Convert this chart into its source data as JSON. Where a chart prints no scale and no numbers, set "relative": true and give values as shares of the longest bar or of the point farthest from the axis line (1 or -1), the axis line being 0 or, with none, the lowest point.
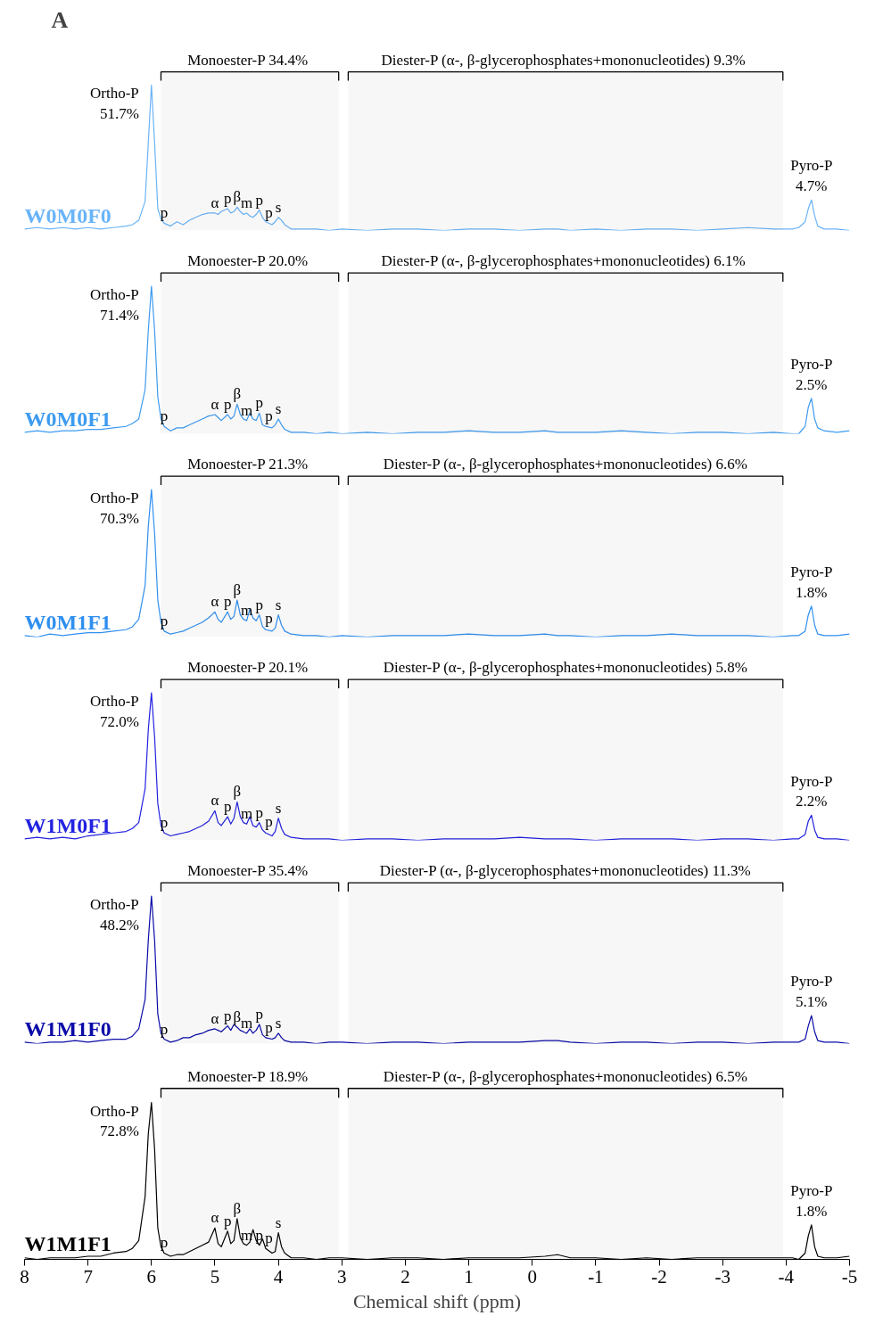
{
  "chart_data": [
    {
      "type": "line",
      "title": "A",
      "relative": true,
      "xlim": [
        8,
        -5
      ],
      "tick_labels": false,
      "x": [
        8.0,
        7.8,
        7.6,
        7.4,
        7.2,
        7.0,
        6.8,
        6.6,
        6.4,
        6.3,
        6.2,
        6.1,
        6.05,
        6.0,
        5.95,
        5.9,
        5.85,
        5.8,
        5.7,
        5.6,
        5.5,
        5.4,
        5.3,
        5.2,
        5.1,
        5.0,
        4.95,
        4.9,
        4.8,
        4.75,
        4.7,
        4.65,
        4.6,
        4.55,
        4.5,
        4.45,
        4.4,
        4.35,
        4.3,
        4.25,
        4.2,
        4.1,
        4.05,
        4.0,
        3.95,
        3.9,
        3.8,
        3.6,
        3.4,
        3.2,
        3.0,
        2.6,
        2.2,
        1.8,
        1.4,
        1.0,
        0.6,
        0.2,
        -0.2,
        -0.4,
        -0.6,
        -1.0,
        -1.4,
        -1.8,
        -2.2,
        -2.6,
        -3.0,
        -3.4,
        -3.8,
        -4.1,
        -4.2,
        -4.3,
        -4.35,
        -4.4,
        -4.45,
        -4.5,
        -4.6,
        -4.8,
        -5.0
      ],
      "series": [
        {
          "name": "W0M0F0",
          "color": "#6ab4f8",
          "values": [
            0.01,
            0.02,
            0.01,
            0.02,
            0.01,
            0.02,
            0.01,
            0.02,
            0.03,
            0.04,
            0.07,
            0.2,
            0.6,
            1,
            0.6,
            0.15,
            0.08,
            0.05,
            0.03,
            0.06,
            0.04,
            0.07,
            0.09,
            0.11,
            0.12,
            0.12,
            0.11,
            0.13,
            0.15,
            0.12,
            0.13,
            0.16,
            0.13,
            0.11,
            0.12,
            0.1,
            0.09,
            0.11,
            0.14,
            0.09,
            0.06,
            0.04,
            0.06,
            0.09,
            0.07,
            0.04,
            0.01,
            0.01,
            0.01,
            0.0,
            0.01,
            0.0,
            0.01,
            0.01,
            0.0,
            0.01,
            0.01,
            0.0,
            0.01,
            0.01,
            0.0,
            0.01,
            0.0,
            0.01,
            0.01,
            0.0,
            0.01,
            0.02,
            0.01,
            0.01,
            0.02,
            0.06,
            0.15,
            0.21,
            0.1,
            0.03,
            0.01,
            0.01,
            0.0
          ]
        }
      ],
      "bands": [
        {
          "axis": "x",
          "from": 5.85,
          "to": 3.05,
          "label": "Monoester-P  34.4%"
        },
        {
          "axis": "x",
          "from": 2.9,
          "to": -3.95,
          "label": "Diester-P  (α-, β-glycerophosphates+mononucleotides) 9.3%"
        }
      ],
      "annotations": [
        {
          "text": "Ortho-P\n51.7%",
          "x": 6.0,
          "y": 1
        },
        {
          "text": "Pyro-P\n4.7%",
          "x": -4.4,
          "y": 0.21
        },
        {
          "text": "p",
          "x": 5.8,
          "y": 0.05
        },
        {
          "text": "α",
          "x": 5.0,
          "y": 0.12
        },
        {
          "text": "p",
          "x": 4.8,
          "y": 0.15
        },
        {
          "text": "β",
          "x": 4.65,
          "y": 0.16
        },
        {
          "text": "m",
          "x": 4.5,
          "y": 0.12
        },
        {
          "text": "p",
          "x": 4.3,
          "y": 0.14
        },
        {
          "text": "p",
          "x": 4.15,
          "y": 0.05
        },
        {
          "text": "s",
          "x": 4.0,
          "y": 0.09
        }
      ]
    },
    {
      "type": "line",
      "relative": true,
      "xlim": [
        8,
        -5
      ],
      "tick_labels": false,
      "x": [
        8.0,
        7.8,
        7.6,
        7.4,
        7.2,
        7.0,
        6.8,
        6.6,
        6.4,
        6.3,
        6.2,
        6.1,
        6.05,
        6.0,
        5.95,
        5.9,
        5.85,
        5.8,
        5.7,
        5.6,
        5.5,
        5.4,
        5.3,
        5.2,
        5.1,
        5.0,
        4.95,
        4.9,
        4.8,
        4.75,
        4.7,
        4.65,
        4.6,
        4.55,
        4.5,
        4.45,
        4.4,
        4.35,
        4.3,
        4.25,
        4.2,
        4.1,
        4.05,
        4.0,
        3.95,
        3.9,
        3.8,
        3.6,
        3.4,
        3.2,
        3.0,
        2.6,
        2.2,
        1.8,
        1.4,
        1.0,
        0.6,
        0.2,
        -0.2,
        -0.4,
        -0.6,
        -1.0,
        -1.4,
        -1.8,
        -2.2,
        -2.6,
        -3.0,
        -3.4,
        -3.8,
        -4.1,
        -4.2,
        -4.3,
        -4.35,
        -4.4,
        -4.45,
        -4.5,
        -4.6,
        -4.8,
        -5.0
      ],
      "series": [
        {
          "name": "W0M0F1",
          "color": "#3d9bf0",
          "values": [
            0.01,
            0.02,
            0.01,
            0.02,
            0.02,
            0.03,
            0.03,
            0.04,
            0.05,
            0.07,
            0.1,
            0.3,
            0.7,
            1,
            0.7,
            0.25,
            0.1,
            0.05,
            0.02,
            0.04,
            0.04,
            0.06,
            0.08,
            0.1,
            0.12,
            0.13,
            0.11,
            0.09,
            0.13,
            0.1,
            0.12,
            0.2,
            0.13,
            0.1,
            0.09,
            0.14,
            0.1,
            0.09,
            0.14,
            0.06,
            0.05,
            0.04,
            0.06,
            0.1,
            0.06,
            0.03,
            0.01,
            0.01,
            0.0,
            0.01,
            0.0,
            0.01,
            0.0,
            0.01,
            0.01,
            0.02,
            0.01,
            0.01,
            0.02,
            0.01,
            0.01,
            0.01,
            0.02,
            0.01,
            0.0,
            0.01,
            0.01,
            0.0,
            0.01,
            0.0,
            0.0,
            0.05,
            0.18,
            0.24,
            0.1,
            0.04,
            0.02,
            0.01,
            0.02
          ]
        }
      ],
      "bands": [
        {
          "axis": "x",
          "from": 5.85,
          "to": 3.05,
          "label": "Monoester-P  20.0%"
        },
        {
          "axis": "x",
          "from": 2.9,
          "to": -3.95,
          "label": "Diester-P  (α-, β-glycerophosphates+mononucleotides) 6.1%"
        }
      ],
      "annotations": [
        {
          "text": "Ortho-P\n71.4%",
          "x": 6.0,
          "y": 1
        },
        {
          "text": "Pyro-P\n2.5%",
          "x": -4.4,
          "y": 0.24
        },
        {
          "text": "p",
          "x": 5.8,
          "y": 0.05
        },
        {
          "text": "α",
          "x": 5.0,
          "y": 0.13
        },
        {
          "text": "p",
          "x": 4.8,
          "y": 0.13
        },
        {
          "text": "β",
          "x": 4.65,
          "y": 0.2
        },
        {
          "text": "m",
          "x": 4.5,
          "y": 0.09
        },
        {
          "text": "p",
          "x": 4.3,
          "y": 0.14
        },
        {
          "text": "p",
          "x": 4.15,
          "y": 0.05
        },
        {
          "text": "s",
          "x": 4.0,
          "y": 0.1
        }
      ]
    },
    {
      "type": "line",
      "relative": true,
      "xlim": [
        8,
        -5
      ],
      "tick_labels": false,
      "x": [
        8.0,
        7.8,
        7.6,
        7.4,
        7.2,
        7.0,
        6.8,
        6.6,
        6.4,
        6.3,
        6.2,
        6.1,
        6.05,
        6.0,
        5.95,
        5.9,
        5.85,
        5.8,
        5.7,
        5.6,
        5.5,
        5.4,
        5.3,
        5.2,
        5.1,
        5.0,
        4.95,
        4.9,
        4.8,
        4.75,
        4.7,
        4.65,
        4.6,
        4.55,
        4.5,
        4.45,
        4.4,
        4.35,
        4.3,
        4.25,
        4.2,
        4.1,
        4.05,
        4.0,
        3.95,
        3.9,
        3.8,
        3.6,
        3.4,
        3.2,
        3.0,
        2.6,
        2.2,
        1.8,
        1.4,
        1.0,
        0.6,
        0.2,
        -0.2,
        -0.4,
        -0.6,
        -1.0,
        -1.4,
        -1.8,
        -2.2,
        -2.6,
        -3.0,
        -3.4,
        -3.8,
        -4.1,
        -4.2,
        -4.3,
        -4.35,
        -4.4,
        -4.45,
        -4.5,
        -4.6,
        -4.8,
        -5.0
      ],
      "series": [
        {
          "name": "W0M1F1",
          "color": "#2f8ff0",
          "values": [
            0.01,
            0.0,
            0.02,
            0.01,
            0.02,
            0.03,
            0.03,
            0.04,
            0.05,
            0.07,
            0.12,
            0.35,
            0.75,
            1,
            0.7,
            0.25,
            0.1,
            0.04,
            0.02,
            0.03,
            0.04,
            0.06,
            0.08,
            0.1,
            0.13,
            0.17,
            0.12,
            0.1,
            0.17,
            0.12,
            0.14,
            0.25,
            0.15,
            0.12,
            0.11,
            0.19,
            0.13,
            0.11,
            0.15,
            0.07,
            0.05,
            0.04,
            0.06,
            0.15,
            0.08,
            0.04,
            0.02,
            0.01,
            0.01,
            0.0,
            0.01,
            0.0,
            0.01,
            0.01,
            0.01,
            0.02,
            0.01,
            0.01,
            0.02,
            0.01,
            0.01,
            0.0,
            0.01,
            0.01,
            0.02,
            0.01,
            0.01,
            0.01,
            0.0,
            0.01,
            0.01,
            0.04,
            0.15,
            0.21,
            0.08,
            0.02,
            0.01,
            0.01,
            0.02
          ]
        }
      ],
      "bands": [
        {
          "axis": "x",
          "from": 5.85,
          "to": 3.05,
          "label": "Monoester-P  21.3%"
        },
        {
          "axis": "x",
          "from": 2.9,
          "to": -3.95,
          "label": "Diester-P (α-, β-glycerophosphates+mononucleotides) 6.6%"
        }
      ],
      "annotations": [
        {
          "text": "Ortho-P\n70.3%",
          "x": 6.0,
          "y": 1
        },
        {
          "text": "Pyro-P\n1.8%",
          "x": -4.4,
          "y": 0.21
        },
        {
          "text": "p",
          "x": 5.8,
          "y": 0.04
        },
        {
          "text": "α",
          "x": 5.0,
          "y": 0.17
        },
        {
          "text": "p",
          "x": 4.8,
          "y": 0.17
        },
        {
          "text": "β",
          "x": 4.65,
          "y": 0.25
        },
        {
          "text": "m",
          "x": 4.5,
          "y": 0.11
        },
        {
          "text": "p",
          "x": 4.3,
          "y": 0.15
        },
        {
          "text": "p",
          "x": 4.15,
          "y": 0.06
        },
        {
          "text": "s",
          "x": 4.0,
          "y": 0.15
        }
      ]
    },
    {
      "type": "line",
      "relative": true,
      "xlim": [
        8,
        -5
      ],
      "tick_labels": false,
      "x": [
        8.0,
        7.8,
        7.6,
        7.4,
        7.2,
        7.0,
        6.8,
        6.6,
        6.4,
        6.3,
        6.2,
        6.1,
        6.05,
        6.0,
        5.95,
        5.9,
        5.85,
        5.8,
        5.7,
        5.6,
        5.5,
        5.4,
        5.3,
        5.2,
        5.1,
        5.0,
        4.95,
        4.9,
        4.8,
        4.75,
        4.7,
        4.65,
        4.6,
        4.55,
        4.5,
        4.45,
        4.4,
        4.35,
        4.3,
        4.25,
        4.2,
        4.1,
        4.05,
        4.0,
        3.95,
        3.9,
        3.8,
        3.6,
        3.4,
        3.2,
        3.0,
        2.6,
        2.2,
        1.8,
        1.4,
        1.0,
        0.6,
        0.2,
        -0.2,
        -0.4,
        -0.6,
        -1.0,
        -1.4,
        -1.8,
        -2.2,
        -2.6,
        -3.0,
        -3.4,
        -3.8,
        -4.1,
        -4.2,
        -4.3,
        -4.35,
        -4.4,
        -4.45,
        -4.5,
        -4.6,
        -4.8,
        -5.0
      ],
      "series": [
        {
          "name": "W1M0F1",
          "color": "#2222e0",
          "values": [
            0.01,
            0.02,
            0.01,
            0.02,
            0.01,
            0.03,
            0.04,
            0.05,
            0.06,
            0.08,
            0.12,
            0.35,
            0.75,
            1,
            0.7,
            0.25,
            0.1,
            0.05,
            0.03,
            0.04,
            0.05,
            0.06,
            0.08,
            0.1,
            0.13,
            0.2,
            0.12,
            0.1,
            0.16,
            0.11,
            0.15,
            0.26,
            0.16,
            0.12,
            0.11,
            0.16,
            0.1,
            0.09,
            0.12,
            0.07,
            0.05,
            0.03,
            0.06,
            0.15,
            0.08,
            0.04,
            0.02,
            0.01,
            0.01,
            0.01,
            0.0,
            0.01,
            0.01,
            0.0,
            0.01,
            0.01,
            0.01,
            0.02,
            0.01,
            0.01,
            0.01,
            0.0,
            0.01,
            0.01,
            0.01,
            0.0,
            0.01,
            0.01,
            0.0,
            0.01,
            0.01,
            0.04,
            0.13,
            0.17,
            0.07,
            0.02,
            0.01,
            0.01,
            0.0
          ]
        }
      ],
      "bands": [
        {
          "axis": "x",
          "from": 5.85,
          "to": 3.05,
          "label": "Monoester-P  20.1%"
        },
        {
          "axis": "x",
          "from": 2.9,
          "to": -3.95,
          "label": "Diester-P (α-, β-glycerophosphates+mononucleotides) 5.8%"
        }
      ],
      "annotations": [
        {
          "text": "Ortho-P\n72.0%",
          "x": 6.0,
          "y": 1
        },
        {
          "text": "Pyro-P\n2.2%",
          "x": -4.4,
          "y": 0.17
        },
        {
          "text": "p",
          "x": 5.8,
          "y": 0.05
        },
        {
          "text": "α",
          "x": 5.0,
          "y": 0.2
        },
        {
          "text": "p",
          "x": 4.8,
          "y": 0.16
        },
        {
          "text": "β",
          "x": 4.65,
          "y": 0.26
        },
        {
          "text": "m",
          "x": 4.5,
          "y": 0.11
        },
        {
          "text": "p",
          "x": 4.3,
          "y": 0.12
        },
        {
          "text": "p",
          "x": 4.15,
          "y": 0.06
        },
        {
          "text": "s",
          "x": 4.0,
          "y": 0.15
        }
      ]
    },
    {
      "type": "line",
      "relative": true,
      "xlim": [
        8,
        -5
      ],
      "tick_labels": false,
      "x": [
        8.0,
        7.8,
        7.6,
        7.4,
        7.2,
        7.0,
        6.8,
        6.6,
        6.4,
        6.3,
        6.2,
        6.1,
        6.05,
        6.0,
        5.95,
        5.9,
        5.85,
        5.8,
        5.7,
        5.6,
        5.5,
        5.4,
        5.3,
        5.2,
        5.1,
        5.0,
        4.95,
        4.9,
        4.8,
        4.75,
        4.7,
        4.65,
        4.6,
        4.55,
        4.5,
        4.45,
        4.4,
        4.35,
        4.3,
        4.25,
        4.2,
        4.1,
        4.05,
        4.0,
        3.95,
        3.9,
        3.8,
        3.6,
        3.4,
        3.2,
        3.0,
        2.6,
        2.2,
        1.8,
        1.4,
        1.0,
        0.6,
        0.2,
        -0.2,
        -0.4,
        -0.6,
        -1.0,
        -1.4,
        -1.8,
        -2.2,
        -2.6,
        -3.0,
        -3.4,
        -3.8,
        -4.1,
        -4.2,
        -4.3,
        -4.35,
        -4.4,
        -4.45,
        -4.5,
        -4.6,
        -4.8,
        -5.0
      ],
      "series": [
        {
          "name": "W1M1F0",
          "color": "#0a0aa8",
          "values": [
            0.01,
            0.0,
            0.01,
            0.01,
            0.02,
            0.01,
            0.02,
            0.03,
            0.03,
            0.05,
            0.1,
            0.3,
            0.7,
            1,
            0.7,
            0.2,
            0.07,
            0.03,
            0.01,
            0.02,
            0.04,
            0.04,
            0.06,
            0.07,
            0.09,
            0.1,
            0.09,
            0.08,
            0.12,
            0.09,
            0.13,
            0.11,
            0.09,
            0.08,
            0.07,
            0.1,
            0.07,
            0.09,
            0.13,
            0.06,
            0.04,
            0.03,
            0.04,
            0.07,
            0.04,
            0.02,
            0.01,
            0.01,
            0.0,
            0.01,
            0.01,
            0.0,
            0.01,
            0.01,
            0.0,
            0.01,
            0.01,
            0.01,
            0.02,
            0.02,
            0.01,
            0.0,
            0.01,
            0.01,
            0.0,
            0.01,
            0.01,
            0.0,
            0.01,
            0.01,
            0.01,
            0.03,
            0.12,
            0.19,
            0.08,
            0.02,
            0.01,
            0.01,
            0.0
          ]
        }
      ],
      "bands": [
        {
          "axis": "x",
          "from": 5.85,
          "to": 3.05,
          "label": "Monoester-P  35.4%"
        },
        {
          "axis": "x",
          "from": 2.9,
          "to": -3.95,
          "label": "Diester-P (α-, β-glycerophosphates+mononucleotides) 11.3%"
        }
      ],
      "annotations": [
        {
          "text": "Ortho-P\n48.2%",
          "x": 6.0,
          "y": 1
        },
        {
          "text": "Pyro-P\n5.1%",
          "x": -4.4,
          "y": 0.19
        },
        {
          "text": "p",
          "x": 5.8,
          "y": 0.03
        },
        {
          "text": "α",
          "x": 5.0,
          "y": 0.1
        },
        {
          "text": "p",
          "x": 4.8,
          "y": 0.12
        },
        {
          "text": "β",
          "x": 4.65,
          "y": 0.11
        },
        {
          "text": "m",
          "x": 4.5,
          "y": 0.07
        },
        {
          "text": "p",
          "x": 4.3,
          "y": 0.13
        },
        {
          "text": "p",
          "x": 4.15,
          "y": 0.04
        },
        {
          "text": "s",
          "x": 4.0,
          "y": 0.07
        }
      ]
    },
    {
      "type": "line",
      "relative": true,
      "xlim": [
        8,
        -5
      ],
      "tick_labels": "x",
      "xlabel": "Chemical shift (ppm)",
      "xticks": [
        8,
        7,
        6,
        5,
        4,
        3,
        2,
        1,
        0,
        -1,
        -2,
        -3,
        -4,
        -5
      ],
      "x": [
        8.0,
        7.8,
        7.6,
        7.4,
        7.2,
        7.0,
        6.8,
        6.6,
        6.4,
        6.3,
        6.2,
        6.1,
        6.05,
        6.0,
        5.95,
        5.9,
        5.85,
        5.8,
        5.7,
        5.6,
        5.5,
        5.4,
        5.3,
        5.2,
        5.1,
        5.0,
        4.95,
        4.9,
        4.8,
        4.75,
        4.7,
        4.65,
        4.6,
        4.55,
        4.5,
        4.45,
        4.4,
        4.35,
        4.3,
        4.25,
        4.2,
        4.1,
        4.05,
        4.0,
        3.95,
        3.9,
        3.8,
        3.6,
        3.4,
        3.2,
        3.0,
        2.6,
        2.2,
        1.8,
        1.4,
        1.0,
        0.6,
        0.2,
        -0.2,
        -0.4,
        -0.6,
        -1.0,
        -1.4,
        -1.8,
        -2.2,
        -2.6,
        -3.0,
        -3.4,
        -3.8,
        -4.1,
        -4.2,
        -4.3,
        -4.35,
        -4.4,
        -4.45,
        -4.5,
        -4.6,
        -4.8,
        -5.0
      ],
      "series": [
        {
          "name": "W1M1F1",
          "color": "#000000",
          "values": [
            0.01,
            0.0,
            0.01,
            0.01,
            0.01,
            0.02,
            0.02,
            0.04,
            0.05,
            0.07,
            0.12,
            0.4,
            0.8,
            1,
            0.7,
            0.2,
            0.08,
            0.04,
            0.02,
            0.03,
            0.03,
            0.05,
            0.07,
            0.09,
            0.11,
            0.2,
            0.1,
            0.08,
            0.18,
            0.1,
            0.12,
            0.26,
            0.14,
            0.1,
            0.09,
            0.11,
            0.19,
            0.12,
            0.09,
            0.13,
            0.07,
            0.04,
            0.05,
            0.17,
            0.08,
            0.04,
            0.01,
            0.01,
            0.0,
            0.01,
            0.01,
            0.0,
            0.01,
            0.01,
            0.0,
            0.01,
            0.01,
            0.01,
            0.02,
            0.03,
            0.01,
            0.01,
            0.0,
            0.01,
            0.0,
            0.01,
            0.01,
            0.01,
            0.01,
            0.01,
            0.0,
            0.04,
            0.15,
            0.22,
            0.08,
            0.02,
            0.01,
            0.01,
            0.02
          ]
        }
      ],
      "bands": [
        {
          "axis": "x",
          "from": 5.85,
          "to": 3.05,
          "label": "Monoester-P  18.9%"
        },
        {
          "axis": "x",
          "from": 2.9,
          "to": -3.95,
          "label": "Diester-P (α-, β-glycerophosphates+mononucleotides) 6.5%"
        }
      ],
      "annotations": [
        {
          "text": "Ortho-P\n72.8%",
          "x": 6.0,
          "y": 1
        },
        {
          "text": "Pyro-P\n1.8%",
          "x": -4.4,
          "y": 0.22
        },
        {
          "text": "p",
          "x": 5.8,
          "y": 0.04
        },
        {
          "text": "α",
          "x": 5.0,
          "y": 0.2
        },
        {
          "text": "p",
          "x": 4.8,
          "y": 0.18
        },
        {
          "text": "β",
          "x": 4.65,
          "y": 0.26
        },
        {
          "text": "m",
          "x": 4.5,
          "y": 0.09
        },
        {
          "text": "p",
          "x": 4.3,
          "y": 0.09
        },
        {
          "text": "p",
          "x": 4.15,
          "y": 0.07
        },
        {
          "text": "s",
          "x": 4.0,
          "y": 0.17
        }
      ]
    }
  ]
}
